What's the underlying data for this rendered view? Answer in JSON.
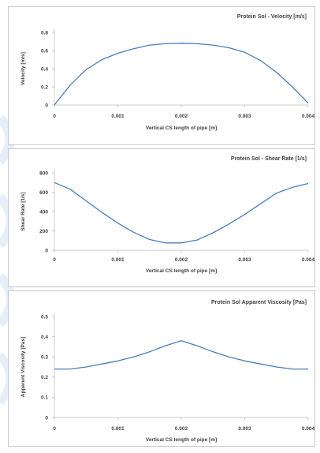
{
  "colors": {
    "series": "#4a7ebb",
    "axis": "#bfbfbf",
    "text": "#404040"
  },
  "chart_data": [
    {
      "type": "line",
      "title": "Protein Sol - Velocity [m/s]",
      "xlabel": "Vertical CS length of pipe [m]",
      "ylabel": "Velocity [m/s]",
      "xlim": [
        0,
        0.004
      ],
      "ylim": [
        0,
        0.8
      ],
      "xticks": [
        "0",
        "0.001",
        "0.002",
        "0.003",
        "0.004"
      ],
      "xtick_values": [
        0,
        0.001,
        0.002,
        0.003,
        0.004
      ],
      "yticks": [
        "0",
        "0.2",
        "0.4",
        "0.6",
        "0.8"
      ],
      "ytick_values": [
        0,
        0.2,
        0.4,
        0.6,
        0.8
      ],
      "grid": false,
      "series": [
        {
          "x": [
            0,
            0.00025,
            0.0005,
            0.00075,
            0.001,
            0.00125,
            0.0015,
            0.00175,
            0.002,
            0.00225,
            0.0025,
            0.00275,
            0.003,
            0.00325,
            0.0035,
            0.00375,
            0.004
          ],
          "values": [
            0.0,
            0.22,
            0.39,
            0.5,
            0.57,
            0.62,
            0.66,
            0.675,
            0.68,
            0.675,
            0.66,
            0.63,
            0.58,
            0.49,
            0.36,
            0.2,
            0.02
          ]
        }
      ]
    },
    {
      "type": "line",
      "title": "Protein Sol - Shear Rate [1/s]",
      "xlabel": "Vertical CS length of pipe [m]",
      "ylabel": "Shear Rate [1/s]",
      "xlim": [
        0,
        0.004
      ],
      "ylim": [
        0,
        800
      ],
      "xticks": [
        "0",
        "0.001",
        "0.002",
        "0.003",
        "0.004"
      ],
      "xtick_values": [
        0,
        0.001,
        0.002,
        0.003,
        0.004
      ],
      "yticks": [
        "0",
        "200",
        "400",
        "600",
        "800"
      ],
      "ytick_values": [
        0,
        200,
        400,
        600,
        800
      ],
      "grid": false,
      "series": [
        {
          "x": [
            0,
            0.00025,
            0.0005,
            0.00075,
            0.001,
            0.00125,
            0.0015,
            0.00175,
            0.002,
            0.00225,
            0.0025,
            0.00275,
            0.003,
            0.00325,
            0.0035,
            0.00375,
            0.004
          ],
          "values": [
            700,
            630,
            510,
            390,
            280,
            185,
            110,
            75,
            75,
            105,
            180,
            270,
            370,
            480,
            590,
            650,
            690
          ]
        }
      ]
    },
    {
      "type": "line",
      "title": "Protein Sol Apparent Viscosity [Pas]",
      "xlabel": "Vertical CS length of pipe [m]",
      "ylabel": "Apparent Viscosity [Pas]",
      "xlim": [
        0,
        0.004
      ],
      "ylim": [
        0,
        0.5
      ],
      "xticks": [
        "0",
        "0.001",
        "0.002",
        "0.003",
        "0.004"
      ],
      "xtick_values": [
        0,
        0.001,
        0.002,
        0.003,
        0.004
      ],
      "yticks": [
        "0",
        "0.1",
        "0.2",
        "0.3",
        "0.4",
        "0.5"
      ],
      "ytick_values": [
        0,
        0.1,
        0.2,
        0.3,
        0.4,
        0.5
      ],
      "grid": false,
      "series": [
        {
          "x": [
            0,
            0.00025,
            0.0005,
            0.00075,
            0.001,
            0.00125,
            0.0015,
            0.00175,
            0.002,
            0.00225,
            0.0025,
            0.00275,
            0.003,
            0.00325,
            0.0035,
            0.00375,
            0.004
          ],
          "values": [
            0.24,
            0.24,
            0.25,
            0.265,
            0.28,
            0.3,
            0.325,
            0.355,
            0.38,
            0.355,
            0.325,
            0.3,
            0.28,
            0.265,
            0.25,
            0.24,
            0.24
          ]
        }
      ]
    }
  ]
}
